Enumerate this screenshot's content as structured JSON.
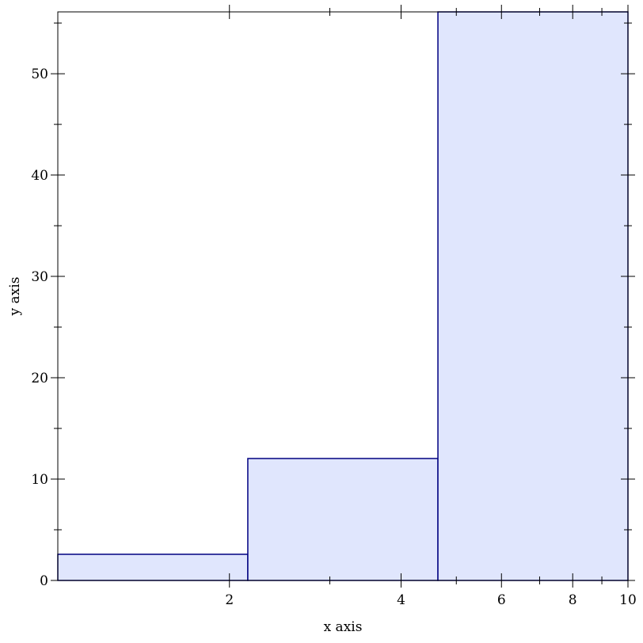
{
  "chart_data": {
    "type": "bar",
    "title": "",
    "xlabel": "x axis",
    "ylabel": "y axis",
    "xscale": "log",
    "xlim": [
      1,
      10
    ],
    "ylim": [
      0,
      56.1
    ],
    "grid": false,
    "x_ticks": [
      2,
      4,
      6,
      8,
      10
    ],
    "x_minor_ticks": [
      3,
      5,
      7,
      9
    ],
    "y_ticks": [
      0,
      10,
      20,
      30,
      40,
      50
    ],
    "y_minor_ticks": [
      5,
      15,
      25,
      35,
      45,
      55
    ],
    "bins": [
      {
        "x_start": 1,
        "x_end": 2.154,
        "value": 2.58
      },
      {
        "x_start": 2.154,
        "x_end": 4.642,
        "value": 12.03
      },
      {
        "x_start": 4.642,
        "x_end": 10,
        "value": 56.1
      }
    ],
    "colors": {
      "fill": "#e0e6fd",
      "stroke": "#000080"
    }
  }
}
